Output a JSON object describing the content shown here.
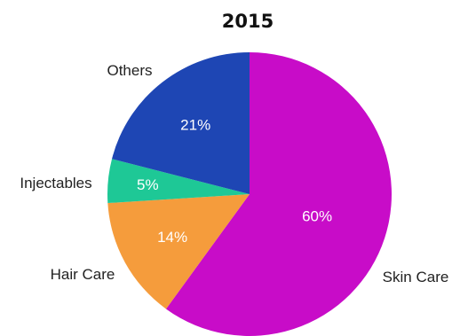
{
  "chart_data": {
    "type": "pie",
    "title": "2015",
    "slices": [
      {
        "label": "Skin Care",
        "value": 60,
        "display": "60%",
        "color": "#c80cc8"
      },
      {
        "label": "Hair Care",
        "value": 14,
        "display": "14%",
        "color": "#f59c3c"
      },
      {
        "label": "Injectables",
        "value": 5,
        "display": "5%",
        "color": "#1ec896"
      },
      {
        "label": "Others",
        "value": 21,
        "display": "21%",
        "color": "#1e46b4"
      }
    ],
    "start_angle_deg": 0,
    "direction": "clockwise"
  }
}
